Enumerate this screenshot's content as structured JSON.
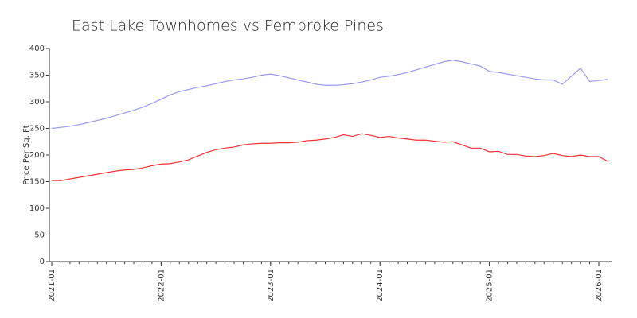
{
  "chart_data": {
    "type": "line",
    "title": "East Lake Townhomes vs Pembroke Pines",
    "ylabel": "Price Per Sq. Ft",
    "x": [
      "2021-01",
      "2021-02",
      "2021-03",
      "2021-04",
      "2021-05",
      "2021-06",
      "2021-07",
      "2021-08",
      "2021-09",
      "2021-10",
      "2021-11",
      "2021-12",
      "2022-01",
      "2022-02",
      "2022-03",
      "2022-04",
      "2022-05",
      "2022-06",
      "2022-07",
      "2022-08",
      "2022-09",
      "2022-10",
      "2022-11",
      "2022-12",
      "2023-01",
      "2023-02",
      "2023-03",
      "2023-04",
      "2023-05",
      "2023-06",
      "2023-07",
      "2023-08",
      "2023-09",
      "2023-10",
      "2023-11",
      "2023-12",
      "2024-01",
      "2024-02",
      "2024-03",
      "2024-04",
      "2024-05",
      "2024-06",
      "2024-07",
      "2024-08",
      "2024-09",
      "2024-10",
      "2024-11",
      "2024-12",
      "2025-01",
      "2025-02",
      "2025-03",
      "2025-04",
      "2025-05",
      "2025-06",
      "2025-07",
      "2025-08",
      "2025-09",
      "2025-10",
      "2025-11",
      "2025-12",
      "2026-01",
      "2026-02"
    ],
    "series": [
      {
        "name": "East Lake Townhomes",
        "color": "#9999ee",
        "values": [
          250,
          252,
          254,
          257,
          261,
          265,
          269,
          274,
          279,
          284,
          290,
          297,
          305,
          313,
          319,
          323,
          327,
          330,
          334,
          338,
          341,
          343,
          346,
          350,
          352,
          349,
          345,
          341,
          337,
          333,
          331,
          331,
          332,
          334,
          337,
          341,
          346,
          348,
          351,
          355,
          360,
          365,
          370,
          375,
          378,
          375,
          371,
          367,
          357,
          355,
          352,
          349,
          346,
          343,
          341,
          341,
          333,
          348,
          363,
          338,
          340,
          342
        ]
      },
      {
        "name": "Pembroke Pines",
        "color": "#ee3333",
        "values": [
          152,
          152,
          155,
          158,
          161,
          164,
          167,
          170,
          172,
          173,
          176,
          180,
          183,
          184,
          187,
          191,
          198,
          205,
          210,
          213,
          215,
          219,
          221,
          222,
          222,
          223,
          223,
          224,
          227,
          228,
          230,
          233,
          238,
          235,
          240,
          237,
          233,
          235,
          232,
          230,
          228,
          228,
          226,
          224,
          225,
          219,
          213,
          213,
          206,
          207,
          201,
          201,
          198,
          197,
          199,
          203,
          199,
          197,
          200,
          197,
          197,
          188
        ]
      }
    ],
    "ylim": [
      0,
      400
    ],
    "yticks": [
      0,
      50,
      100,
      150,
      200,
      250,
      300,
      350,
      400
    ],
    "xticks": [
      "2021-01",
      "2022-01",
      "2023-01",
      "2024-01",
      "2025-01",
      "2026-01"
    ]
  }
}
